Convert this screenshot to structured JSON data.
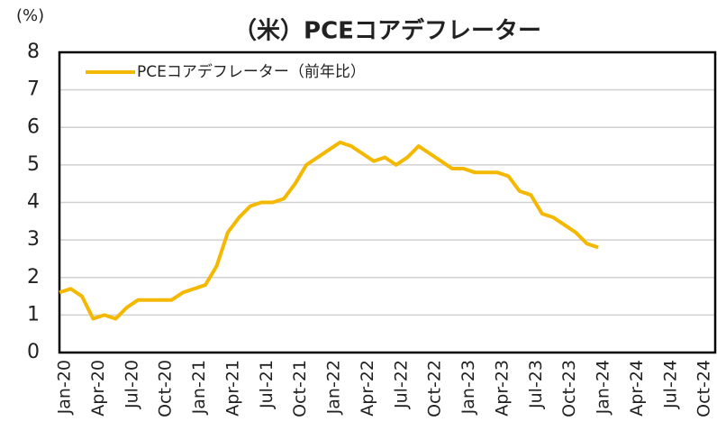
{
  "chart_data": {
    "type": "line",
    "title": "（米）PCEコアデフレーター",
    "y_unit": "(%)",
    "categories": [
      "Jan-20",
      null,
      null,
      "Apr-20",
      null,
      null,
      "Jul-20",
      null,
      null,
      "Oct-20",
      null,
      null,
      "Jan-21",
      null,
      null,
      "Apr-21",
      null,
      null,
      "Jul-21",
      null,
      null,
      "Oct-21",
      null,
      null,
      "Jan-22",
      null,
      null,
      "Apr-22",
      null,
      null,
      "Jul-22",
      null,
      null,
      "Oct-22",
      null,
      null,
      "Jan-23",
      null,
      null,
      "Apr-23",
      null,
      null,
      "Jul-23",
      null,
      null,
      "Oct-23",
      null,
      null,
      "Jan-24",
      null,
      null,
      "Apr-24",
      null,
      null,
      "Jul-24",
      null,
      null,
      "Oct-24"
    ],
    "series": [
      {
        "name": "PCEコアデフレーター（前年比）",
        "color": "#f5b800",
        "values": [
          1.6,
          1.7,
          1.5,
          0.9,
          1.0,
          0.9,
          1.2,
          1.4,
          1.4,
          1.4,
          1.4,
          1.6,
          1.7,
          1.8,
          2.3,
          3.2,
          3.6,
          3.9,
          4.0,
          4.0,
          4.1,
          4.5,
          5.0,
          5.2,
          5.4,
          5.6,
          5.5,
          5.3,
          5.1,
          5.2,
          5.0,
          5.2,
          5.5,
          5.3,
          5.1,
          4.9,
          4.9,
          4.8,
          4.8,
          4.8,
          4.7,
          4.3,
          4.2,
          3.7,
          3.6,
          3.4,
          3.2,
          2.9,
          2.8,
          null,
          null,
          null,
          null,
          null,
          null,
          null,
          null,
          null
        ]
      }
    ],
    "ylim": [
      0,
      8
    ],
    "yticks": [
      0,
      1,
      2,
      3,
      4,
      5,
      6,
      7,
      8
    ],
    "grid": true,
    "legend": "upper left"
  }
}
